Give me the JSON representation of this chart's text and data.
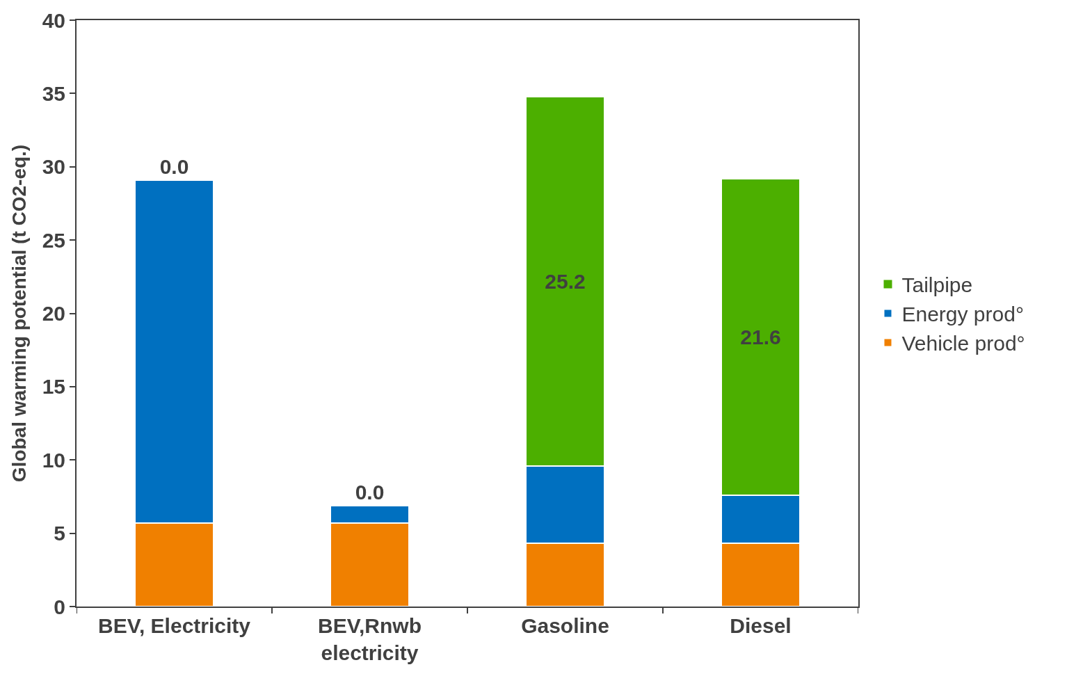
{
  "chart_data": {
    "type": "bar",
    "stacked": true,
    "ylabel": "Global warming potential (t CO2-eq.)",
    "categories": [
      "BEV, Electricity",
      "BEV,Rnwb electricity",
      "Gasoline",
      "Diesel"
    ],
    "series": [
      {
        "name": "Vehicle prod°",
        "color": "#f08000",
        "values": [
          5.7,
          5.7,
          4.3,
          4.3
        ]
      },
      {
        "name": "Energy prod°",
        "color": "#0070c0",
        "values": [
          23.4,
          1.2,
          5.3,
          3.3
        ]
      },
      {
        "name": "Tailpipe",
        "color": "#4caf00",
        "values": [
          0,
          0,
          25.2,
          21.6
        ],
        "value_labels": [
          "0.0",
          "0.0",
          "25.2",
          "21.6"
        ]
      }
    ],
    "ylim": [
      0,
      40
    ],
    "yticks": [
      0,
      5,
      10,
      15,
      20,
      25,
      30,
      35,
      40
    ],
    "legend": "right"
  }
}
